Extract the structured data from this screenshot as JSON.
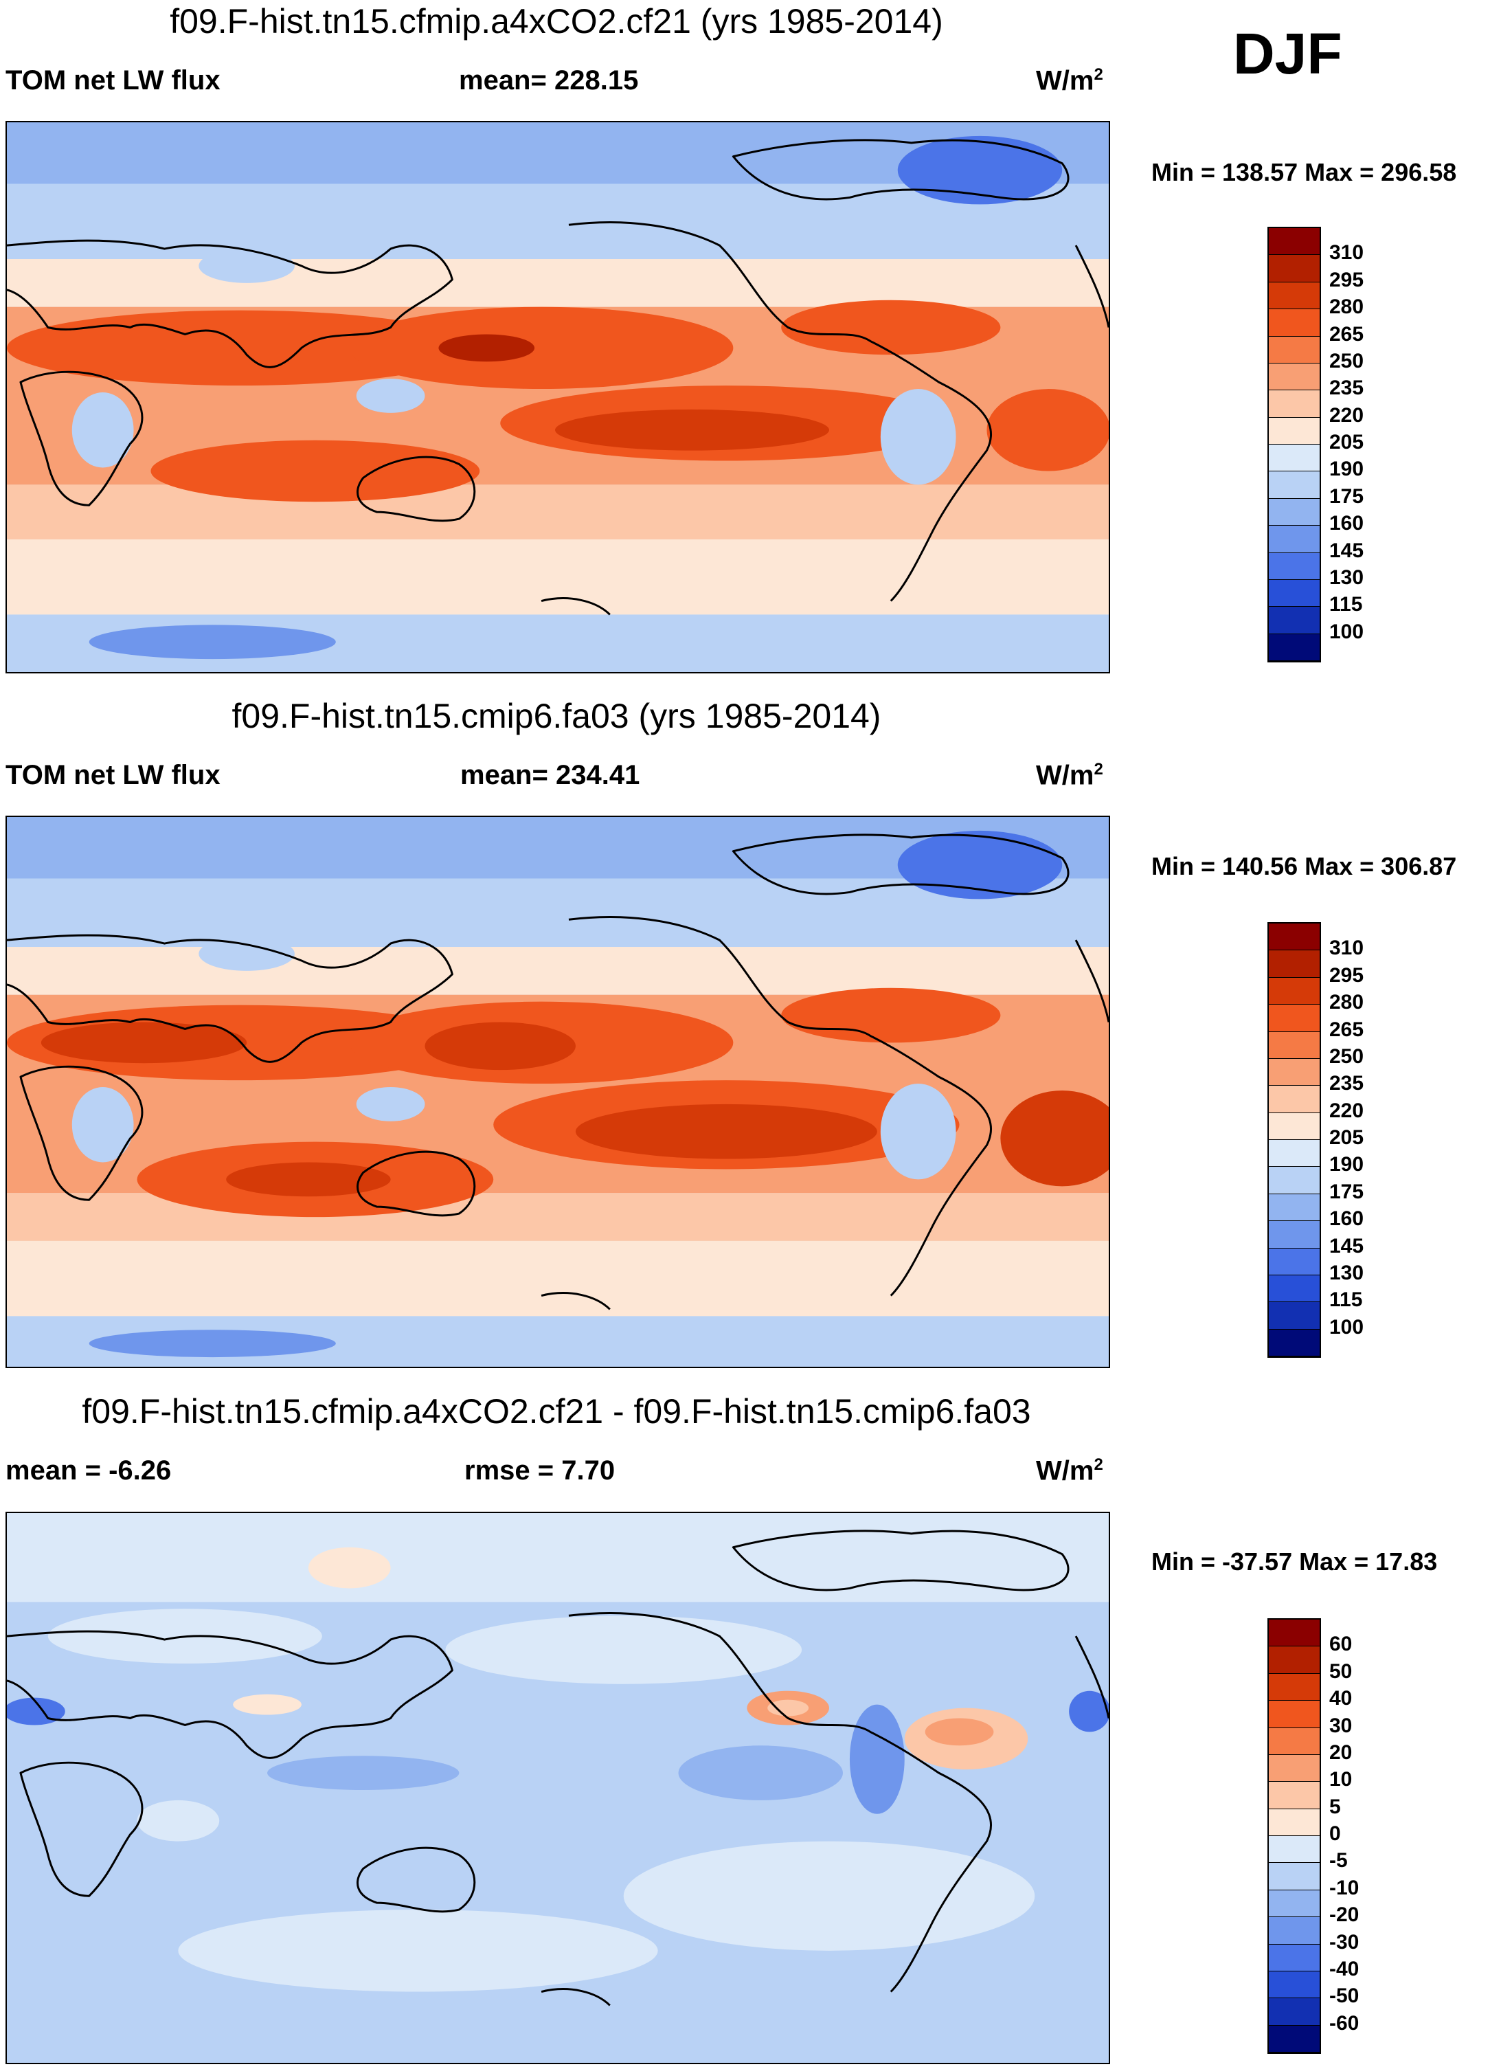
{
  "season": "DJF",
  "panels": [
    {
      "title": "f09.F-hist.tn15.cfmip.a4xCO2.cf21 (yrs 1985-2014)",
      "left_label": "TOM net LW flux",
      "mid_label": "mean= 228.15",
      "unit": "W/m",
      "unit_exp": "2",
      "minmax": "Min = 138.57 Max = 296.58",
      "kind": "abs"
    },
    {
      "title": "f09.F-hist.tn15.cmip6.fa03 (yrs 1985-2014)",
      "left_label": "TOM net LW flux",
      "mid_label": "mean= 234.41",
      "unit": "W/m",
      "unit_exp": "2",
      "minmax": "Min = 140.56 Max = 306.87",
      "kind": "abs"
    },
    {
      "title": "f09.F-hist.tn15.cfmip.a4xCO2.cf21 - f09.F-hist.tn15.cmip6.fa03",
      "left_label": "mean =  -6.26",
      "mid_label": "rmse =   7.70",
      "unit": "W/m",
      "unit_exp": "2",
      "minmax": "Min = -37.57 Max =  17.83",
      "kind": "diff"
    }
  ],
  "colorbars": {
    "abs": {
      "labels": [
        "310",
        "295",
        "280",
        "265",
        "250",
        "235",
        "220",
        "205",
        "190",
        "175",
        "160",
        "145",
        "130",
        "115",
        "100"
      ],
      "colors": [
        "#8b0000",
        "#b22000",
        "#d53a08",
        "#f0561e",
        "#f57a45",
        "#f89f74",
        "#fcc7a8",
        "#fde7d6",
        "#dbe9f9",
        "#b9d2f5",
        "#92b4f0",
        "#6f96ec",
        "#4b74e8",
        "#2850d8",
        "#1230b2",
        "#000a78"
      ]
    },
    "diff": {
      "labels": [
        "60",
        "50",
        "40",
        "30",
        "20",
        "10",
        "5",
        "0",
        "-5",
        "-10",
        "-20",
        "-30",
        "-40",
        "-50",
        "-60"
      ],
      "colors": [
        "#8b0000",
        "#b22000",
        "#d53a08",
        "#f0561e",
        "#f57a45",
        "#f89f74",
        "#fcc7a8",
        "#fde7d6",
        "#dbe9f9",
        "#b9d2f5",
        "#92b4f0",
        "#6f96ec",
        "#4b74e8",
        "#2850d8",
        "#1230b2",
        "#000a78"
      ]
    }
  }
}
